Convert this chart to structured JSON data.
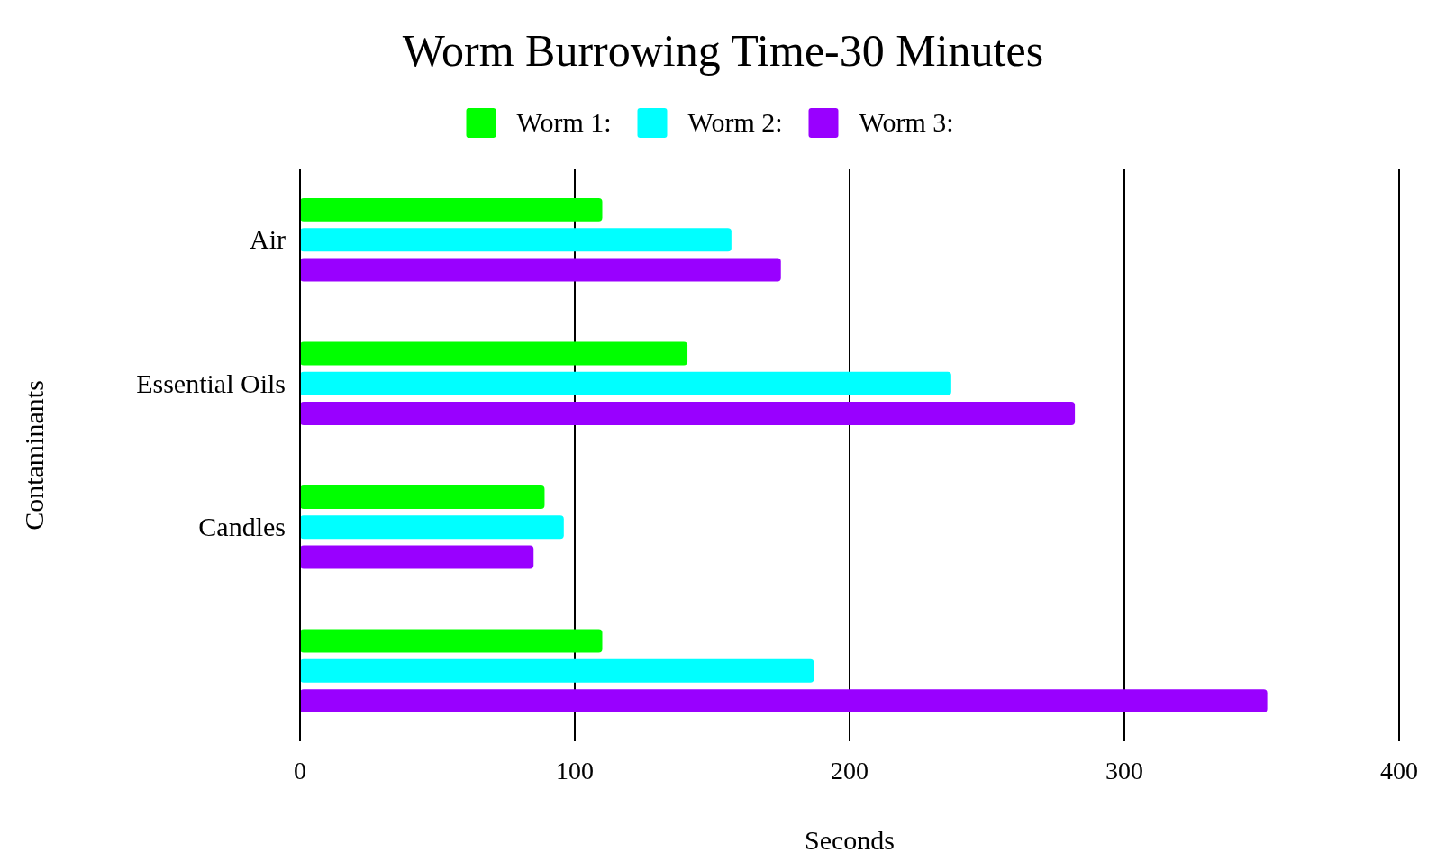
{
  "chart_data": {
    "type": "bar",
    "orientation": "horizontal",
    "title": "Worm Burrowing Time-30 Minutes",
    "xlabel": "Seconds",
    "ylabel": "Contaminants",
    "categories": [
      "Air",
      "Essential Oils",
      "Candles",
      null
    ],
    "series": [
      {
        "name": "Worm 1:",
        "color": "#00ff00",
        "values": [
          110,
          141,
          89,
          110
        ]
      },
      {
        "name": "Worm 2:",
        "color": "#00ffff",
        "values": [
          157,
          237,
          96,
          187
        ]
      },
      {
        "name": "Worm 3:",
        "color": "#9900ff",
        "values": [
          175,
          282,
          85,
          352
        ]
      }
    ],
    "xlim": [
      0,
      400
    ],
    "xticks": [
      0,
      100,
      200,
      300,
      400
    ],
    "grid": "x",
    "legend": "top"
  }
}
